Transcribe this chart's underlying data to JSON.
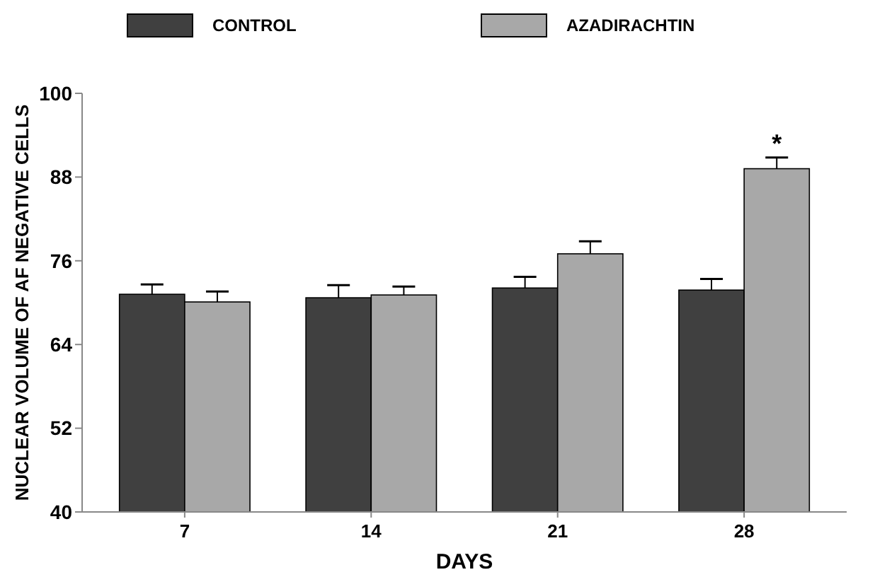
{
  "chart_data": {
    "type": "bar",
    "xlabel": "DAYS",
    "ylabel": "NUCLEAR VOLUME OF AF NEGATIVE CELLS",
    "categories": [
      "7",
      "14",
      "21",
      "28"
    ],
    "series": [
      {
        "name": "CONTROL",
        "color": "#404040",
        "values": [
          71.2,
          70.7,
          72.1,
          71.8
        ],
        "errors": [
          1.4,
          1.8,
          1.6,
          1.6
        ]
      },
      {
        "name": "AZADIRACHTIN",
        "color": "#a8a8a8",
        "values": [
          70.1,
          71.1,
          77.0,
          89.2
        ],
        "errors": [
          1.5,
          1.2,
          1.8,
          1.6
        ]
      }
    ],
    "ylim": [
      40,
      100
    ],
    "yticks": [
      40,
      52,
      64,
      76,
      88,
      100
    ],
    "grid": false,
    "legend": "top",
    "annotations": [
      {
        "text": "*",
        "x": "28",
        "y": 89.2
      }
    ]
  }
}
